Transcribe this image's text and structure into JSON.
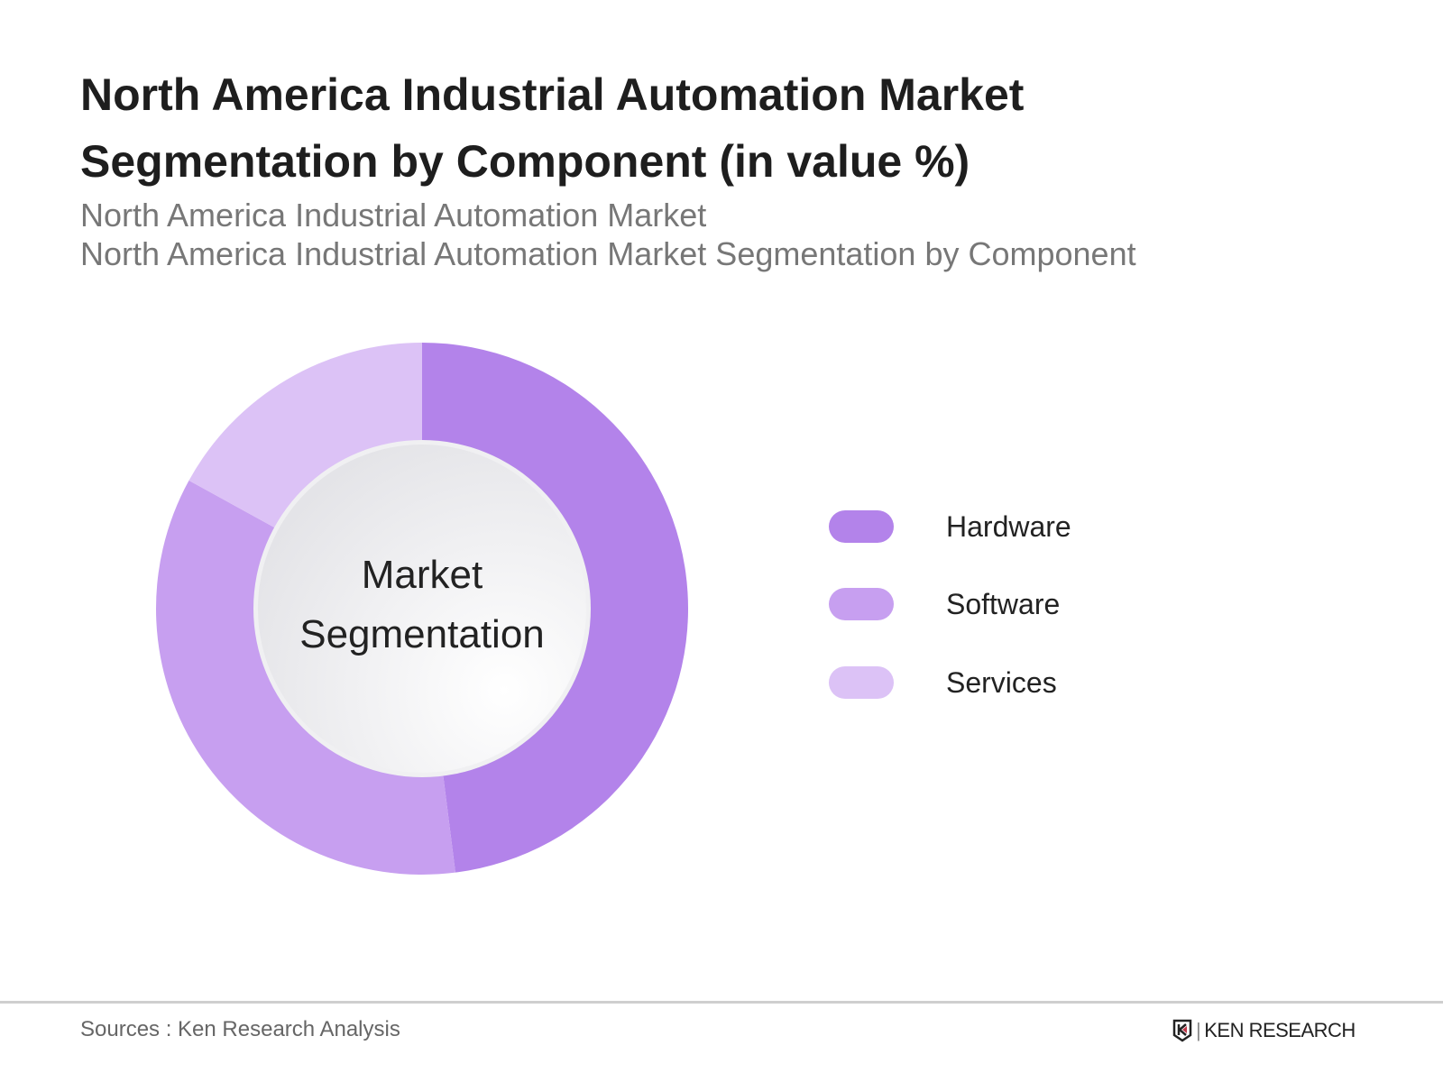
{
  "header": {
    "title": "North America Industrial Automation Market Segmentation by Component (in value %)",
    "subtitle_1": "North America Industrial Automation Market",
    "subtitle_2": "North America Industrial Automation Market Segmentation by Component"
  },
  "chart_data": {
    "type": "pie",
    "variant": "donut",
    "title": "North America Industrial Automation Market Segmentation by Component (in value %)",
    "center_label_1": "Market",
    "center_label_2": "Segmentation",
    "categories": [
      "Hardware",
      "Software",
      "Services"
    ],
    "values": [
      48,
      35,
      17
    ],
    "colors": [
      "#b383ea",
      "#c79ff0",
      "#dcc2f6"
    ],
    "legend_position": "right"
  },
  "footer": {
    "source": "Sources : Ken Research Analysis",
    "logo_text": "KEN RESEARCH"
  }
}
